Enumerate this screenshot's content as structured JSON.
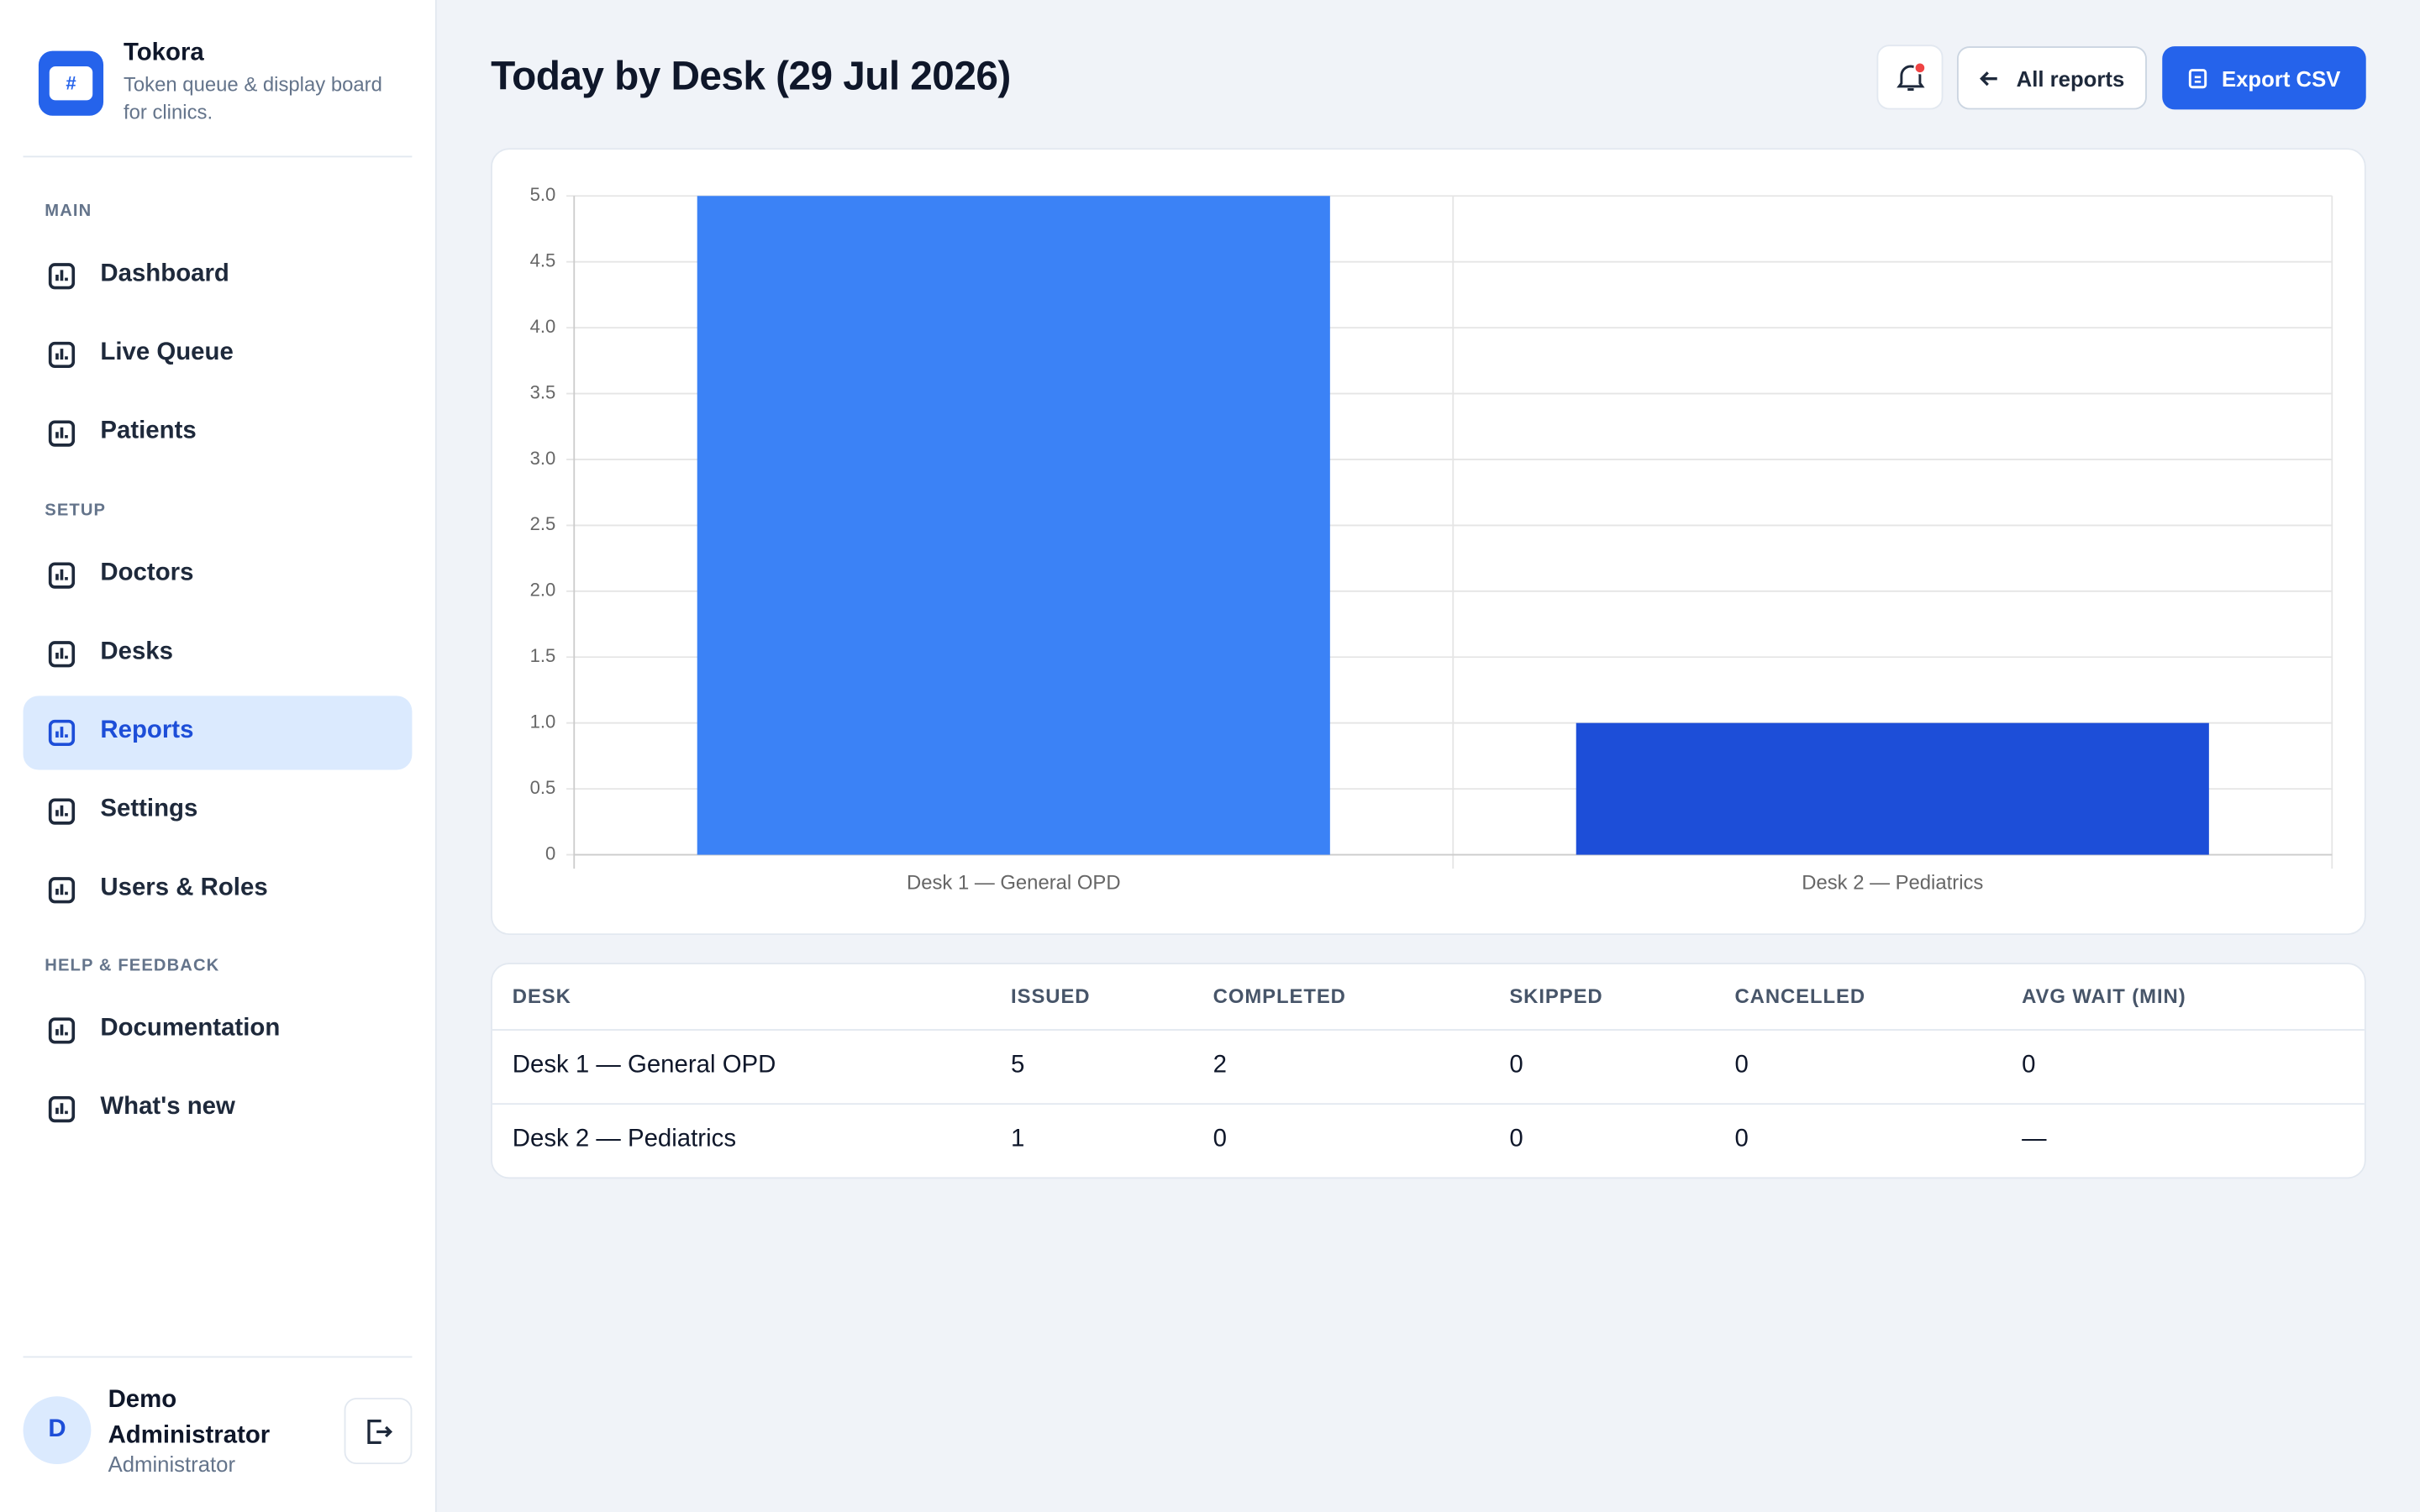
{
  "brand": {
    "name": "Tokora",
    "tagline": "Token queue & display board for clinics.",
    "logo_text": "#"
  },
  "sidebar": {
    "sections": [
      {
        "label": "MAIN",
        "items": [
          {
            "label": "Dashboard"
          },
          {
            "label": "Live Queue"
          },
          {
            "label": "Patients"
          }
        ]
      },
      {
        "label": "SETUP",
        "items": [
          {
            "label": "Doctors"
          },
          {
            "label": "Desks"
          },
          {
            "label": "Reports",
            "active": true
          },
          {
            "label": "Settings"
          },
          {
            "label": "Users & Roles"
          }
        ]
      },
      {
        "label": "HELP & FEEDBACK",
        "items": [
          {
            "label": "Documentation"
          },
          {
            "label": "What's new"
          }
        ]
      }
    ]
  },
  "user": {
    "initial": "D",
    "name": "Demo Administrator",
    "role": "Administrator"
  },
  "header": {
    "title": "Today by Desk (29 Jul 2026)",
    "back_button": "All reports",
    "export_button": "Export CSV"
  },
  "chart_data": {
    "type": "bar",
    "categories": [
      "Desk 1 — General OPD",
      "Desk 2 — Pediatrics"
    ],
    "values": [
      5,
      1
    ],
    "colors": [
      "#3b82f6",
      "#1d4ed8"
    ],
    "ylim": [
      0,
      5
    ],
    "yticks": [
      0,
      0.5,
      {
        "value": 1,
        "label": "1.0"
      },
      1.5,
      {
        "value": 2,
        "label": "2.0"
      },
      2.5,
      {
        "value": 3,
        "label": "3.0"
      },
      3.5,
      {
        "value": 4,
        "label": "4.0"
      },
      4.5,
      {
        "value": 5,
        "label": "5.0"
      }
    ],
    "grid": true
  },
  "table": {
    "columns": [
      "DESK",
      "ISSUED",
      "COMPLETED",
      "SKIPPED",
      "CANCELLED",
      "AVG WAIT (MIN)"
    ],
    "rows": [
      [
        "Desk 1 — General OPD",
        5,
        2,
        0,
        0,
        0
      ],
      [
        "Desk 2 — Pediatrics",
        1,
        0,
        0,
        0,
        "—"
      ]
    ]
  }
}
